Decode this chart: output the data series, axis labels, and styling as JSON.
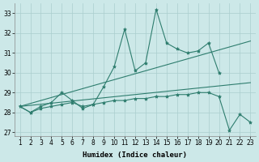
{
  "xlabel": "Humidex (Indice chaleur)",
  "x": [
    1,
    2,
    3,
    4,
    5,
    6,
    7,
    8,
    9,
    10,
    11,
    12,
    13,
    14,
    15,
    16,
    17,
    18,
    19,
    20,
    21,
    22,
    23
  ],
  "line1": [
    28.3,
    28.0,
    28.3,
    28.5,
    29.0,
    28.6,
    28.2,
    28.4,
    29.3,
    30.3,
    32.2,
    30.1,
    30.5,
    33.2,
    31.5,
    31.2,
    31.0,
    31.1,
    31.5,
    30.0,
    null,
    null,
    null
  ],
  "line3": [
    28.3,
    28.0,
    28.2,
    28.3,
    28.4,
    28.5,
    28.3,
    28.4,
    28.5,
    28.6,
    28.6,
    28.7,
    28.7,
    28.8,
    28.8,
    28.9,
    28.9,
    29.0,
    29.0,
    28.8,
    27.1,
    27.9,
    27.5
  ],
  "trend1_x": [
    1,
    23
  ],
  "trend1_y": [
    28.3,
    31.6
  ],
  "trend2_x": [
    1,
    23
  ],
  "trend2_y": [
    28.3,
    29.5
  ],
  "ylim": [
    26.8,
    33.5
  ],
  "yticks": [
    27,
    28,
    29,
    30,
    31,
    32,
    33
  ],
  "xlim": [
    0.5,
    23.5
  ],
  "xticks": [
    1,
    2,
    3,
    4,
    5,
    6,
    7,
    8,
    9,
    10,
    11,
    12,
    13,
    14,
    15,
    16,
    17,
    18,
    19,
    20,
    21,
    22,
    23
  ],
  "line_color": "#2e7d6e",
  "bg_color": "#cce8e8",
  "grid_color": "#aacece",
  "label_fontsize": 6.5,
  "tick_fontsize": 5.5
}
